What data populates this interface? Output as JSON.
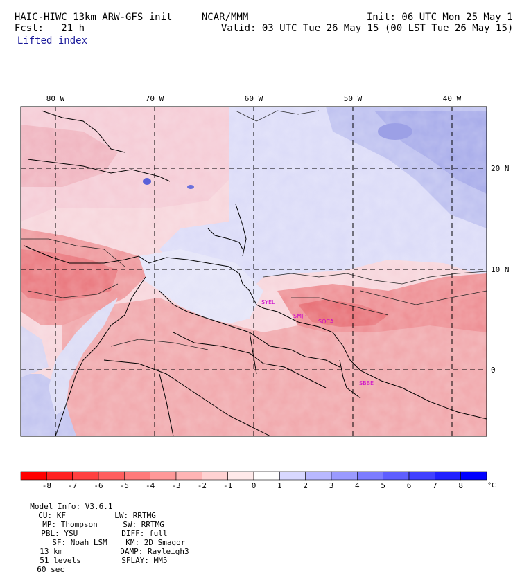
{
  "header": {
    "model_title": "HAIC-HIWC 13km ARW-GFS init",
    "org": "NCAR/MMM",
    "init": "Init: 06 UTC Mon 25 May 15",
    "fcst": "Fcst:   21 h",
    "valid": "Valid: 03 UTC Tue 26 May 15 (00 LST Tue 26 May 15)",
    "field": "Lifted index"
  },
  "map": {
    "lon_labels": [
      "80 W",
      "70 W",
      "60 W",
      "50 W",
      "40 W"
    ],
    "lat_labels": [
      "20 N",
      "10 N",
      "0"
    ],
    "stations": [
      "SYEL",
      "SMJP",
      "SOCA",
      "SBBE"
    ],
    "station_color": "#cc00cc"
  },
  "colorbar": {
    "ticks": [
      "-8",
      "-7",
      "-6",
      "-5",
      "-4",
      "-3",
      "-2",
      "-1",
      "0",
      "1",
      "2",
      "3",
      "4",
      "5",
      "6",
      "7",
      "8"
    ],
    "unit": "°C",
    "colors": [
      "#ff0000",
      "#ff2020",
      "#ff4040",
      "#ff5e5e",
      "#ff7a7a",
      "#ff9898",
      "#ffb4b4",
      "#ffd2d2",
      "#ffeaea",
      "#ffffff",
      "#d8d8ff",
      "#b8b8ff",
      "#9a9aff",
      "#7c7cff",
      "#5e5eff",
      "#4040ff",
      "#2020ff",
      "#0000ff"
    ]
  },
  "footer": {
    "line1": [
      "Model Info: V3.6.1",
      "CU: KF",
      "MP: Thompson",
      "PBL: YSU",
      "SF: Noah LSM",
      "13 km",
      "51 levels",
      "60 sec"
    ],
    "line2": [
      "LW: RRTMG",
      "SW: RRTMG",
      "DIFF: full",
      "KM: 2D Smagor",
      "DAMP: Rayleigh3",
      "SFLAY: MM5"
    ]
  }
}
